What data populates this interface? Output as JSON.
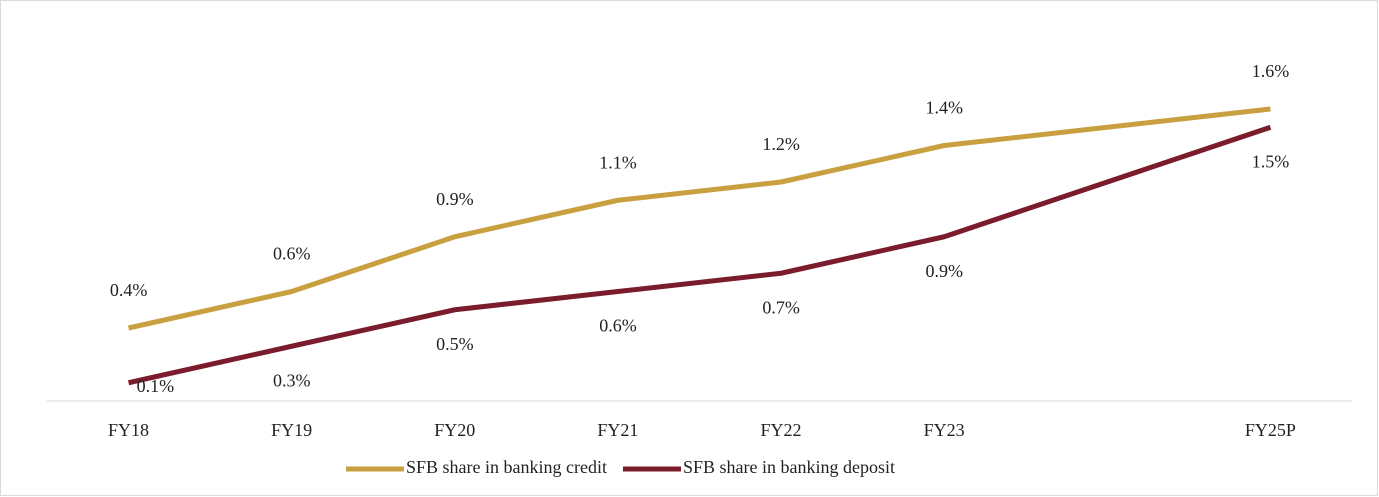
{
  "chart_data": {
    "type": "line",
    "x": [
      18,
      19,
      20,
      21,
      22,
      23,
      25
    ],
    "xlim": [
      17.5,
      25.5
    ],
    "xticks": [
      {
        "value": 18,
        "label": "FY18"
      },
      {
        "value": 19,
        "label": "FY19"
      },
      {
        "value": 20,
        "label": "FY20"
      },
      {
        "value": 21,
        "label": "FY21"
      },
      {
        "value": 22,
        "label": "FY22"
      },
      {
        "value": 23,
        "label": "FY23"
      },
      {
        "value": 25,
        "label": "FY25P"
      }
    ],
    "ylim": [
      0,
      2
    ],
    "legend": "bottom",
    "series": [
      {
        "name": "SFB share in banking credit",
        "color": "#c9a03f",
        "values": [
          0.4,
          0.6,
          0.9,
          1.1,
          1.2,
          1.4,
          1.6
        ],
        "value_labels": [
          "0.4%",
          "0.6%",
          "0.9%",
          "1.1%",
          "1.2%",
          "1.4%",
          "1.6%"
        ]
      },
      {
        "name": "SFB share in banking deposit",
        "color": "#7b1c2c",
        "values": [
          0.1,
          0.3,
          0.5,
          0.6,
          0.7,
          0.9,
          1.5
        ],
        "value_labels": [
          "0.1%",
          "0.3%",
          "0.5%",
          "0.6%",
          "0.7%",
          "0.9%",
          "1.5%"
        ]
      }
    ]
  }
}
